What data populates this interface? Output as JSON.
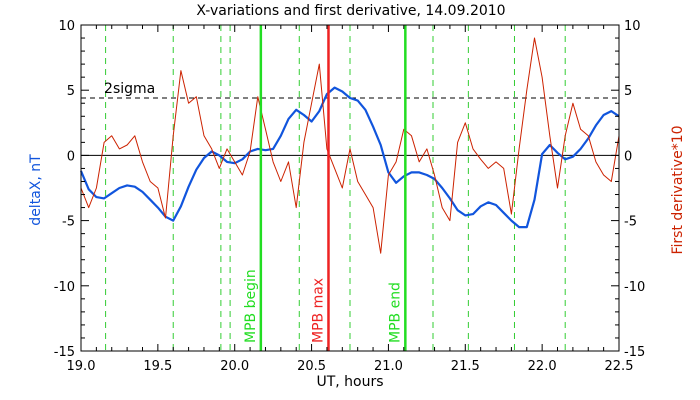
{
  "chart_data": {
    "type": "line",
    "title": "X-variations and first derivative, 14.09.2010",
    "xlabel": "UT, hours",
    "ylabel_left": "deltaX, nT",
    "ylabel_right": "First derivative*10",
    "xlim": [
      19.0,
      22.5
    ],
    "ylim": [
      -15,
      10
    ],
    "x_ticks": [
      "19.0",
      "19.5",
      "20.0",
      "20.5",
      "21.0",
      "21.5",
      "22.0",
      "22.5"
    ],
    "x_tick_values": [
      19.0,
      19.5,
      20.0,
      20.5,
      21.0,
      21.5,
      22.0,
      22.5
    ],
    "y_ticks_left": [
      "-15",
      "-10",
      "-5",
      "0",
      "5",
      "10"
    ],
    "y_ticks_right": [
      "-15",
      "-10",
      "-5",
      "0",
      "5",
      "10"
    ],
    "y_tick_values": [
      -15,
      -10,
      -5,
      0,
      5,
      10
    ],
    "threshold": {
      "label": "2sigma",
      "value": 4.4
    },
    "zero_line": 0,
    "dashed_verticals": [
      19.16,
      19.6,
      19.91,
      19.97,
      20.42,
      20.75,
      21.29,
      21.52,
      21.82,
      22.15
    ],
    "markers": [
      {
        "label": "MPB begin",
        "x": 20.17,
        "color": "#22dd22"
      },
      {
        "label": "MPB max",
        "x": 20.61,
        "color": "#ee2222"
      },
      {
        "label": "MPB end",
        "x": 21.11,
        "color": "#22dd22"
      }
    ],
    "series": [
      {
        "color": "#1155dd",
        "axis": "left",
        "x": [
          19.0,
          19.05,
          19.1,
          19.15,
          19.2,
          19.25,
          19.3,
          19.35,
          19.4,
          19.45,
          19.5,
          19.55,
          19.6,
          19.65,
          19.7,
          19.75,
          19.8,
          19.85,
          19.9,
          19.95,
          20.0,
          20.05,
          20.1,
          20.15,
          20.2,
          20.25,
          20.3,
          20.35,
          20.4,
          20.45,
          20.5,
          20.55,
          20.6,
          20.65,
          20.7,
          20.75,
          20.8,
          20.85,
          20.9,
          20.95,
          21.0,
          21.05,
          21.1,
          21.15,
          21.2,
          21.25,
          21.3,
          21.35,
          21.4,
          21.45,
          21.5,
          21.55,
          21.6,
          21.65,
          21.7,
          21.75,
          21.8,
          21.85,
          21.9,
          21.95,
          22.0,
          22.05,
          22.1,
          22.15,
          22.2,
          22.25,
          22.3,
          22.35,
          22.4,
          22.45,
          22.5
        ],
        "values": [
          -1.2,
          -2.6,
          -3.2,
          -3.3,
          -2.9,
          -2.5,
          -2.3,
          -2.4,
          -2.8,
          -3.4,
          -4.0,
          -4.7,
          -5.0,
          -3.9,
          -2.4,
          -1.1,
          -0.2,
          0.3,
          0.0,
          -0.5,
          -0.6,
          -0.3,
          0.3,
          0.5,
          0.4,
          0.5,
          1.5,
          2.8,
          3.5,
          3.1,
          2.6,
          3.4,
          4.7,
          5.2,
          4.9,
          4.4,
          4.2,
          3.5,
          2.2,
          0.8,
          -1.3,
          -2.1,
          -1.6,
          -1.3,
          -1.3,
          -1.5,
          -1.8,
          -2.5,
          -3.3,
          -4.2,
          -4.6,
          -4.5,
          -3.9,
          -3.6,
          -3.8,
          -4.4,
          -5.0,
          -5.5,
          -5.5,
          -3.4,
          0.1,
          0.8,
          0.2,
          -0.3,
          -0.1,
          0.5,
          1.3,
          2.3,
          3.1,
          3.4,
          3.0
        ]
      },
      {
        "color": "#cc2200",
        "axis": "right",
        "x": [
          19.0,
          19.05,
          19.1,
          19.15,
          19.2,
          19.25,
          19.3,
          19.35,
          19.4,
          19.45,
          19.5,
          19.55,
          19.6,
          19.65,
          19.7,
          19.75,
          19.8,
          19.85,
          19.9,
          19.95,
          20.0,
          20.05,
          20.1,
          20.15,
          20.2,
          20.25,
          20.3,
          20.35,
          20.4,
          20.45,
          20.5,
          20.55,
          20.6,
          20.65,
          20.7,
          20.75,
          20.8,
          20.85,
          20.9,
          20.95,
          21.0,
          21.05,
          21.1,
          21.15,
          21.2,
          21.25,
          21.3,
          21.35,
          21.4,
          21.45,
          21.5,
          21.55,
          21.6,
          21.65,
          21.7,
          21.75,
          21.8,
          21.85,
          21.9,
          21.95,
          22.0,
          22.05,
          22.1,
          22.15,
          22.2,
          22.25,
          22.3,
          22.35,
          22.4,
          22.45,
          22.5
        ],
        "values": [
          -2.5,
          -4.0,
          -2.5,
          1.0,
          1.5,
          0.5,
          0.8,
          1.5,
          -0.5,
          -2.0,
          -2.5,
          -4.8,
          1.5,
          6.5,
          4.0,
          4.5,
          1.5,
          0.5,
          -1.0,
          0.5,
          -0.5,
          -1.5,
          0.3,
          4.5,
          2.0,
          -0.5,
          -2.0,
          -0.5,
          -4.0,
          1.0,
          4.0,
          7.0,
          0.5,
          -1.0,
          -2.5,
          0.5,
          -2.0,
          -3.0,
          -4.0,
          -7.5,
          -1.5,
          -0.5,
          2.0,
          1.5,
          -0.5,
          0.5,
          -1.5,
          -4.0,
          -5.0,
          1.0,
          2.5,
          0.5,
          -0.3,
          -1.0,
          -0.5,
          -1.0,
          -4.5,
          0.5,
          5.0,
          9.0,
          6.0,
          1.5,
          -2.5,
          1.5,
          4.0,
          2.0,
          1.5,
          -0.5,
          -1.5,
          -2.0,
          1.5
        ]
      }
    ]
  }
}
